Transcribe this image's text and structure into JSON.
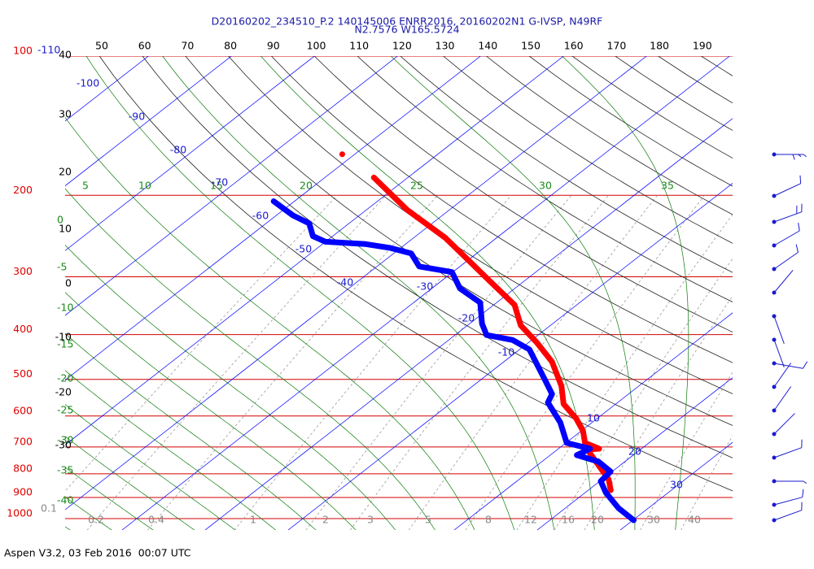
{
  "chart_data": {
    "type": "skewt",
    "title": [
      "D20160202_234510_P.2 140145006 ENRR2016, 20160202N1 G-IVSP, N49RF",
      "N2.7576 W165.5724"
    ],
    "footer": "Aspen V3.2, 03 Feb 2016  00:07 UTC",
    "pressure_ticks": [
      100,
      200,
      300,
      400,
      500,
      600,
      700,
      800,
      900,
      1000
    ],
    "isotherm_ticks": [
      -110,
      -100,
      -90,
      -80,
      -70,
      -60,
      -50,
      -40,
      -30,
      -20,
      -10,
      10,
      20,
      30
    ],
    "dry_adiabat_ticks": [
      50,
      60,
      70,
      80,
      90,
      100,
      110,
      120,
      130,
      140,
      150,
      160,
      170,
      180,
      190
    ],
    "moist_adiabat_ticks_top": [
      5,
      10,
      15,
      20,
      25,
      30,
      35
    ],
    "moist_adiabat_ticks_left": [
      0,
      -5,
      -10,
      -15,
      -20,
      -25,
      -30,
      -35,
      -40
    ],
    "mixing_ratio_ticks": [
      0.1,
      0.2,
      0.4,
      1,
      2,
      3,
      5,
      8,
      12,
      16,
      20,
      30,
      40
    ],
    "height_labels": [
      40,
      30,
      20,
      10,
      0,
      -10,
      -20,
      -30
    ],
    "series": [
      {
        "color": "#ff0000",
        "pressure": [
          183,
          215,
          247,
          276,
          309,
          345,
          382,
          417,
          458,
          517,
          565,
          608,
          646,
          686,
          706,
          709,
          823,
          868
        ],
        "values": [
          -54.1,
          -45.1,
          -36.2,
          -30.0,
          -23.7,
          -17.5,
          -13.6,
          -8.9,
          -4.2,
          0.7,
          3.7,
          7.5,
          10.2,
          12.3,
          14.9,
          13.6,
          20.8,
          22.7
        ]
      },
      {
        "color": "#0000ff",
        "pressure": [
          206,
          221,
          230,
          245,
          252,
          255,
          260,
          267,
          285,
          293,
          318,
          341,
          379,
          401,
          411,
          431,
          503,
          538,
          561,
          620,
          686,
          706,
          729,
          753,
          791,
          830,
          879,
          949,
          1008
        ],
        "values": [
          -62.5,
          -58.0,
          -54.8,
          -52.4,
          -50.0,
          -44.8,
          -41.2,
          -37.9,
          -34.9,
          -30.1,
          -26.6,
          -22.0,
          -18.5,
          -16.2,
          -12.3,
          -8.8,
          -2.1,
          0.8,
          1.6,
          6.2,
          10.1,
          13.8,
          13.2,
          16.8,
          19.8,
          20.1,
          22.5,
          26.4,
          30.1
        ]
      }
    ],
    "marker": {
      "color": "#ff0000",
      "pressure": 163,
      "value": -61.5
    }
  }
}
